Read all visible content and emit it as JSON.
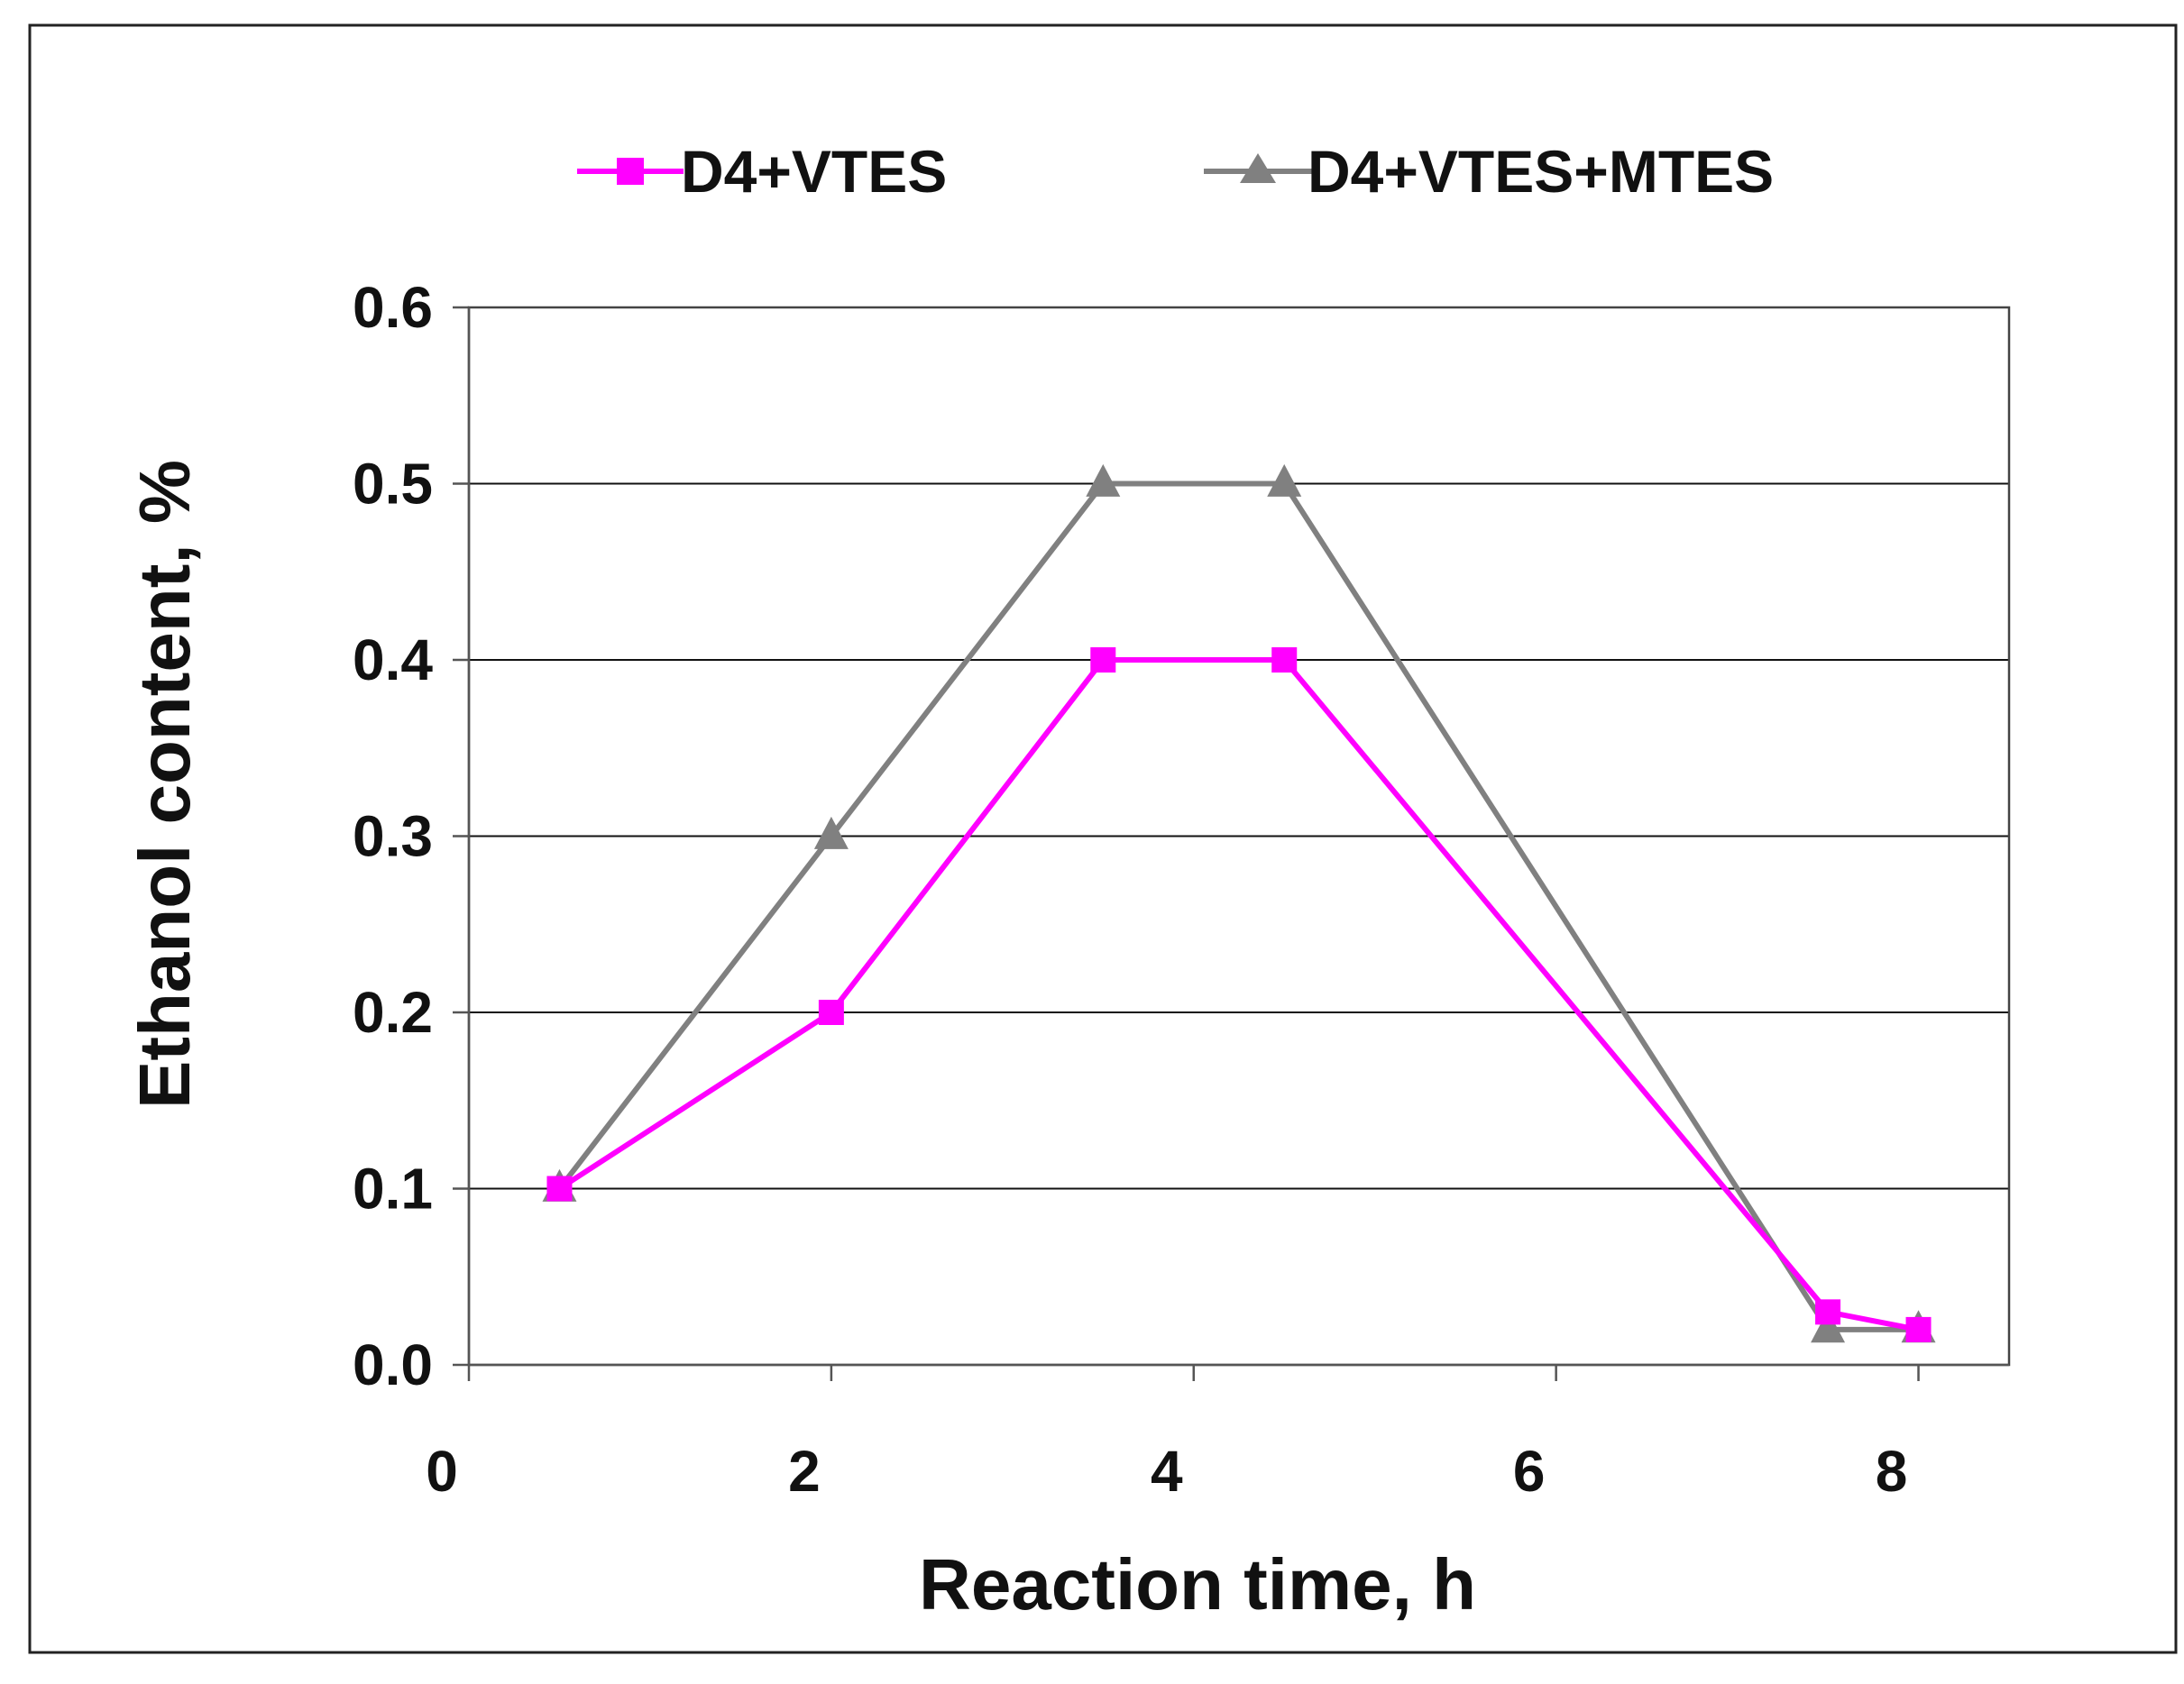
{
  "chart_data": {
    "type": "line",
    "title": "",
    "xlabel": "Reaction time, h",
    "ylabel": "Ethanol content, %",
    "xlim": [
      0,
      8.5
    ],
    "ylim": [
      0,
      0.6
    ],
    "xticks": [
      0,
      2,
      4,
      6,
      8
    ],
    "xtick_labels": [
      "0",
      "2",
      "4",
      "6",
      "8"
    ],
    "yticks": [
      0,
      0.1,
      0.2,
      0.3,
      0.4,
      0.5,
      0.6
    ],
    "ytick_labels": [
      "0.0",
      "0.1",
      "0.2",
      "0.3",
      "0.4",
      "0.5",
      "0.6"
    ],
    "grid": "horizontal",
    "legend_position": "top",
    "series": [
      {
        "name": "D4+VTES",
        "color": "#ff00ff",
        "marker": "square",
        "x": [
          0.5,
          2,
          3.5,
          4.5,
          7.5,
          8
        ],
        "values": [
          0.1,
          0.2,
          0.4,
          0.4,
          0.03,
          0.02
        ]
      },
      {
        "name": "D4+VTES+MTES",
        "color": "#808080",
        "marker": "triangle",
        "x": [
          0.5,
          2,
          3.5,
          4.5,
          7.5,
          8
        ],
        "values": [
          0.1,
          0.3,
          0.5,
          0.5,
          0.02,
          0.02
        ]
      }
    ]
  }
}
